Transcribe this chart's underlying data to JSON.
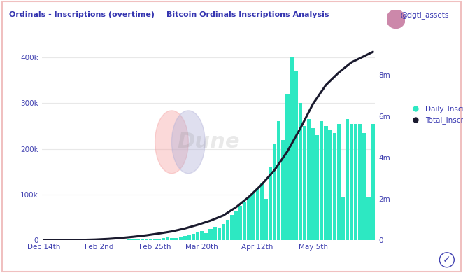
{
  "title_left": "Ordinals - Inscriptions (overtime)",
  "title_right": "Bitcoin Ordinals Inscriptions Analysis",
  "watermark": "Dune",
  "attribution": "@dgtl_assets",
  "bar_color": "#2de8c2",
  "line_color": "#1a1a2e",
  "background_color": "#ffffff",
  "border_color": "#f0c0c0",
  "left_yticks": [
    0,
    100000,
    200000,
    300000,
    400000
  ],
  "left_yticklabels": [
    "0",
    "100k",
    "200k",
    "300k",
    "400k"
  ],
  "right_yticks": [
    0,
    2000000,
    4000000,
    6000000,
    8000000
  ],
  "right_yticklabels": [
    "0",
    "2m",
    "4m",
    "6m",
    "8m"
  ],
  "xtick_labels": [
    "Dec 14th",
    "Feb 2nd",
    "Feb 25th",
    "Mar 20th",
    "Apr 12th",
    "May 5th"
  ],
  "xtick_positions": [
    0,
    13,
    26,
    37,
    50,
    63
  ],
  "legend_labels": [
    "Daily_Inscriptions",
    "Total_Inscriptions"
  ],
  "legend_colors": [
    "#2de8c2",
    "#1a1a2e"
  ],
  "grid_color": "#e8e8e8",
  "title_color": "#3535b0",
  "tick_label_color": "#4040b0",
  "daily_values": [
    100,
    80,
    90,
    70,
    80,
    100,
    120,
    90,
    80,
    100,
    200,
    150,
    250,
    200,
    300,
    350,
    500,
    600,
    800,
    1000,
    1200,
    1500,
    2000,
    1800,
    2500,
    3000,
    4000,
    3500,
    5000,
    6000,
    5500,
    4500,
    7000,
    9000,
    11000,
    14000,
    17000,
    20000,
    15000,
    25000,
    30000,
    28000,
    35000,
    45000,
    55000,
    65000,
    75000,
    85000,
    95000,
    105000,
    115000,
    125000,
    90000,
    160000,
    210000,
    260000,
    220000,
    320000,
    400000,
    370000,
    300000,
    250000,
    265000,
    245000,
    230000,
    260000,
    250000,
    240000,
    235000,
    255000,
    95000,
    265000,
    255000,
    255000,
    255000,
    235000,
    95000,
    255000
  ],
  "n_bars": 78,
  "ylim_left": [
    0,
    430000
  ],
  "ylim_right": [
    0,
    9500000
  ],
  "xlim": [
    -0.5,
    77.5
  ],
  "total_line_x": [
    0,
    3,
    6,
    9,
    12,
    15,
    18,
    21,
    24,
    27,
    30,
    33,
    36,
    39,
    42,
    45,
    48,
    51,
    54,
    57,
    60,
    63,
    66,
    69,
    72,
    75,
    77
  ],
  "total_line_y": [
    1000,
    3000,
    8000,
    18000,
    35000,
    65000,
    110000,
    170000,
    240000,
    330000,
    430000,
    570000,
    750000,
    950000,
    1200000,
    1600000,
    2100000,
    2700000,
    3400000,
    4300000,
    5400000,
    6600000,
    7500000,
    8100000,
    8600000,
    8900000,
    9100000
  ]
}
